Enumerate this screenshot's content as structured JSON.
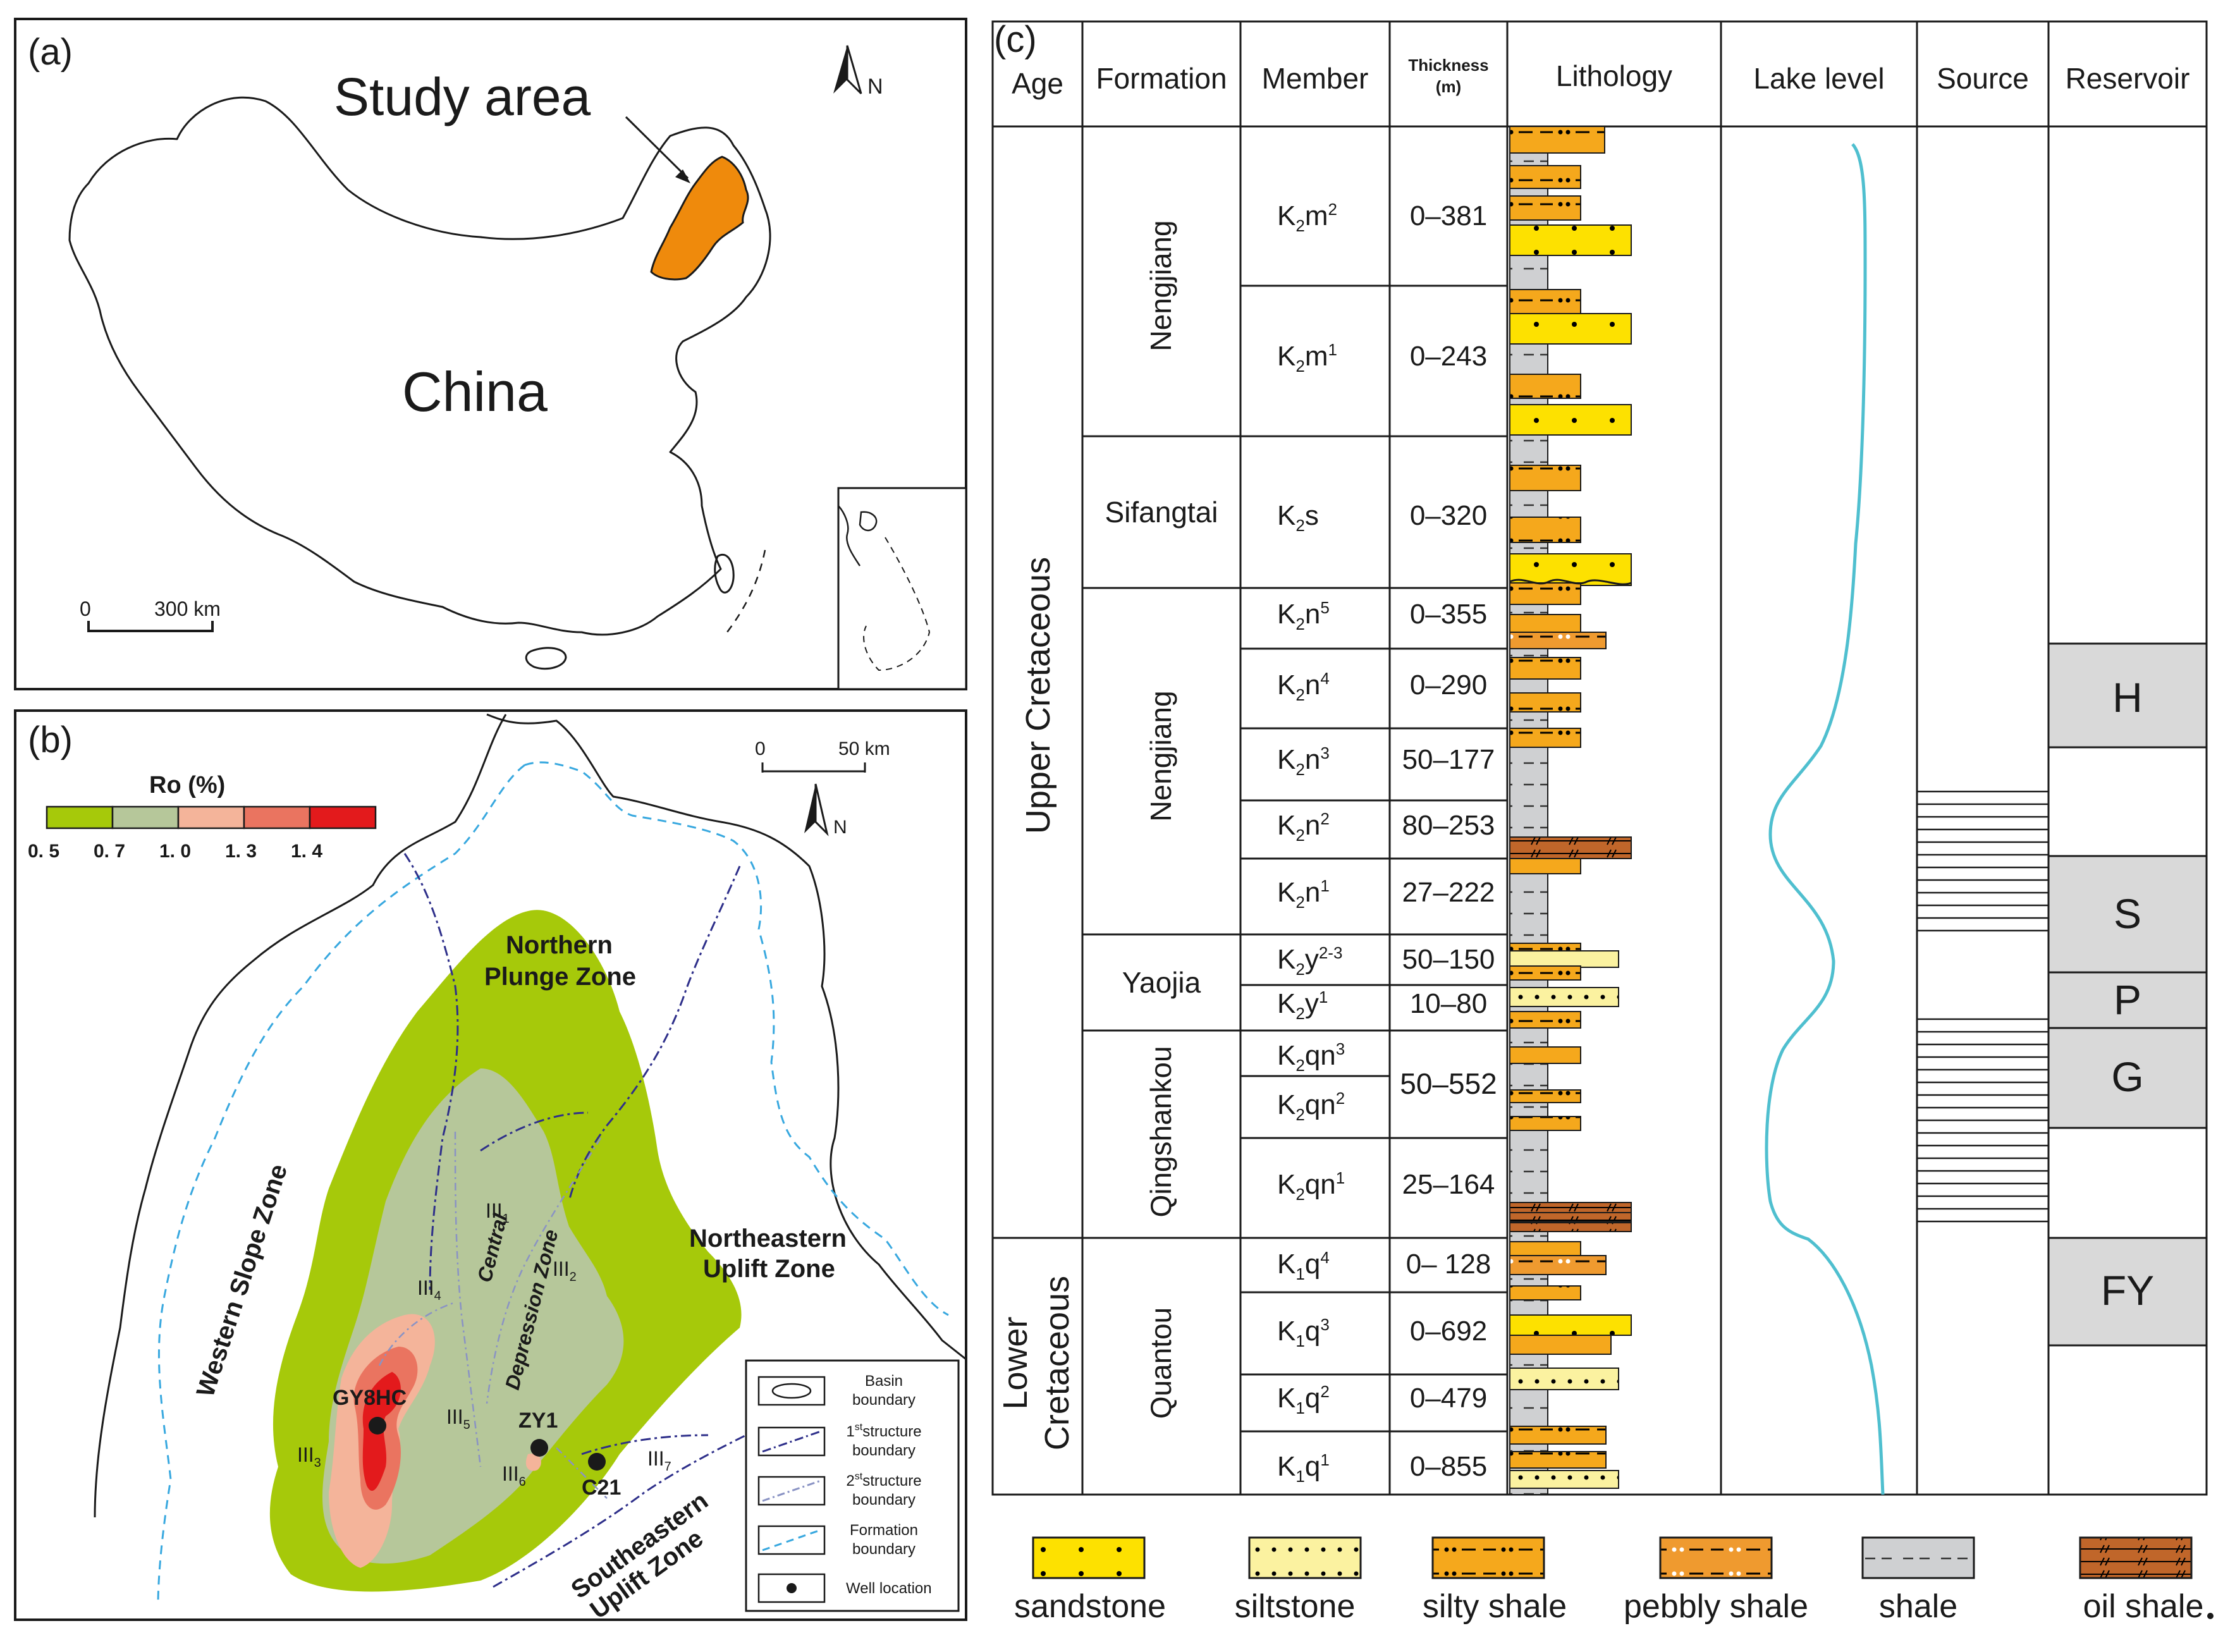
{
  "panel_a": {
    "label": "(a)",
    "study_area": "Study area",
    "country": "China",
    "north": "N",
    "scale_zero": "0",
    "scale_text": "300 km"
  },
  "panel_b": {
    "label": "(b)",
    "legend_title": "Ro (%)",
    "ro_ticks": [
      "0. 5",
      "0. 7",
      "1. 0",
      "1. 3",
      "1. 4"
    ],
    "ro_colors": [
      "#a6c90a",
      "#b6c79a",
      "#f4b49a",
      "#ea7460",
      "#e31a1c"
    ],
    "scale_zero": "0",
    "scale_text": "50 km",
    "north": "N",
    "zones": {
      "northern_1": "Northern",
      "northern_2": "Plunge Zone",
      "northeastern_1": "Northeastern",
      "northeastern_2": "Uplift Zone",
      "western": "Western Slope Zone",
      "central_1": "Central",
      "central_2": "Depression Zone",
      "southeastern_1": "Southeastern",
      "southeastern_2": "Uplift Zone"
    },
    "subzones": [
      {
        "base": "III",
        "sub": "1"
      },
      {
        "base": "III",
        "sub": "2"
      },
      {
        "base": "III",
        "sub": "3"
      },
      {
        "base": "III",
        "sub": "4"
      },
      {
        "base": "III",
        "sub": "5"
      },
      {
        "base": "III",
        "sub": "6"
      },
      {
        "base": "III",
        "sub": "7"
      }
    ],
    "wells": [
      "GY8HC",
      "ZY1",
      "C21"
    ],
    "legend": {
      "basin_1": "Basin",
      "basin_2": "boundary",
      "first_1": "1",
      "first_sup": "st",
      "first_1b": "structure",
      "first_2": "boundary",
      "second_1": "2",
      "second_sup": "st",
      "second_1b": "structure",
      "second_2": "boundary",
      "formation_1": "Formation",
      "formation_2": "boundary",
      "well": "Well location"
    }
  },
  "panel_c": {
    "label": "(c)",
    "headers": {
      "age": "Age",
      "formation": "Formation",
      "member": "Member",
      "thickness_1": "Thickness",
      "thickness_2": "(m)",
      "lithology": "Lithology",
      "lake_level": "Lake level",
      "source": "Source",
      "reservoir": "Reservoir"
    },
    "ages": [
      "Upper Cretaceous",
      "Lower",
      "Cretaceous"
    ],
    "formations": [
      "Nengjiang",
      "Sifangtai",
      "Nengjiang",
      "Yaojia",
      "Qingshankou",
      "Quantou"
    ],
    "members": [
      {
        "base": "K",
        "sub": "2",
        "rest": "m",
        "sup": "2",
        "thickness": "0–381"
      },
      {
        "base": "K",
        "sub": "2",
        "rest": "m",
        "sup": "1",
        "thickness": "0–243"
      },
      {
        "base": "K",
        "sub": "2",
        "rest": "s",
        "sup": "",
        "thickness": "0–320"
      },
      {
        "base": "K",
        "sub": "2",
        "rest": "n",
        "sup": "5",
        "thickness": "0–355"
      },
      {
        "base": "K",
        "sub": "2",
        "rest": "n",
        "sup": "4",
        "thickness": "0–290"
      },
      {
        "base": "K",
        "sub": "2",
        "rest": "n",
        "sup": "3",
        "thickness": "50–177"
      },
      {
        "base": "K",
        "sub": "2",
        "rest": "n",
        "sup": "2",
        "thickness": "80–253"
      },
      {
        "base": "K",
        "sub": "2",
        "rest": "n",
        "sup": "1",
        "thickness": "27–222"
      },
      {
        "base": "K",
        "sub": "2",
        "rest": "y",
        "sup": "2-3",
        "thickness": "50–150"
      },
      {
        "base": "K",
        "sub": "2",
        "rest": "y",
        "sup": "1",
        "thickness": "10–80"
      },
      {
        "base": "K",
        "sub": "2",
        "rest": "qn",
        "sup": "3",
        "thickness": ""
      },
      {
        "base": "K",
        "sub": "2",
        "rest": "qn",
        "sup": "2",
        "thickness": "50–552"
      },
      {
        "base": "K",
        "sub": "2",
        "rest": "qn",
        "sup": "1",
        "thickness": "25–164"
      },
      {
        "base": "K",
        "sub": "1",
        "rest": "q",
        "sup": "4",
        "thickness": "0– 128"
      },
      {
        "base": "K",
        "sub": "1",
        "rest": "q",
        "sup": "3",
        "thickness": "0–692"
      },
      {
        "base": "K",
        "sub": "1",
        "rest": "q",
        "sup": "2",
        "thickness": "0–479"
      },
      {
        "base": "K",
        "sub": "1",
        "rest": "q",
        "sup": "1",
        "thickness": "0–855"
      }
    ],
    "reservoirs": [
      "H",
      "S",
      "P",
      "G",
      "FY"
    ],
    "lithology_legend": [
      "sandstone",
      "siltstone",
      "silty shale",
      "pebbly shale",
      "shale",
      "oil shale"
    ],
    "lithology_colors": {
      "sandstone": "#fde100",
      "siltstone": "#fbf2a0",
      "silty_shale": "#f5a81c",
      "pebbly_shale": "#ef9a2f",
      "shale": "#cfd0d2",
      "oil_shale": "#c0662a"
    },
    "lake_level_color": "#4fbfcf"
  }
}
